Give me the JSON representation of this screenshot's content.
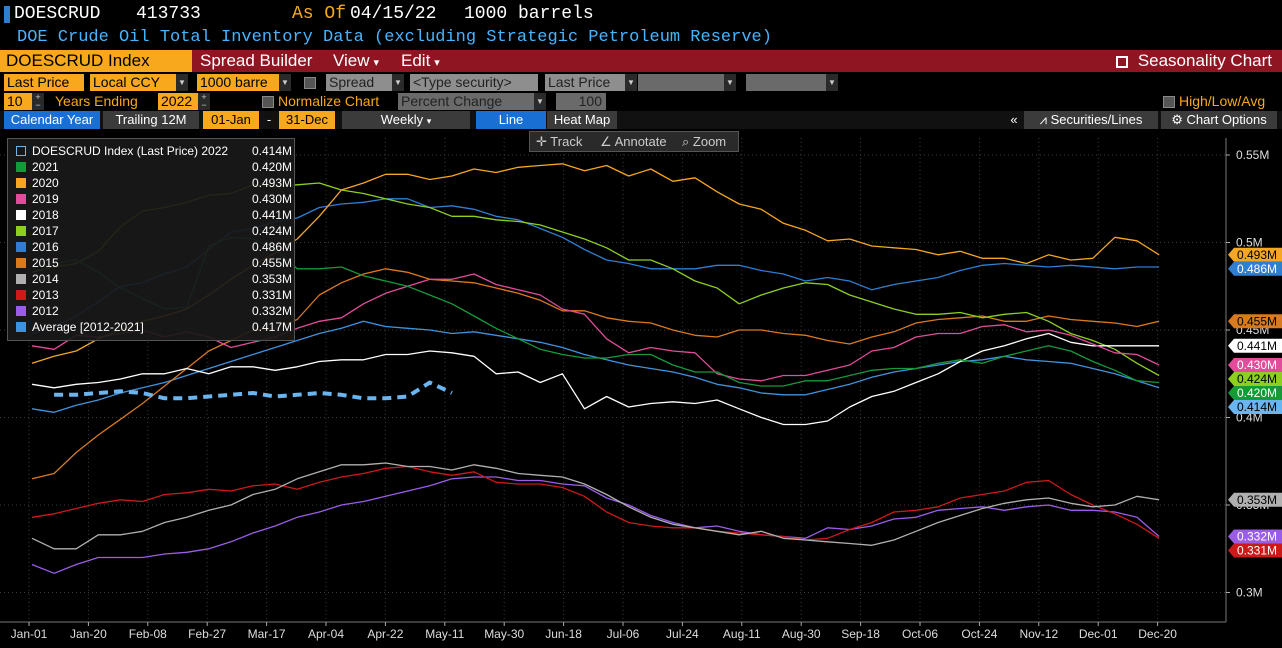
{
  "header": {
    "ticker": "DOESCRUD",
    "value": "413733",
    "asof_label": "As Of",
    "asof_date": "04/15/22",
    "units": "1000 barrels",
    "description": "DOE Crude Oil Total Inventory Data (excluding Strategic Petroleum Reserve)"
  },
  "tabs": {
    "index": "DOESCRUD Index",
    "spread_builder": "Spread Builder",
    "view": "View",
    "edit": "Edit",
    "seasonality": "Seasonality Chart"
  },
  "options": {
    "last_price": "Last Price",
    "local_ccy": "Local CCY",
    "units": "1000 barre",
    "spread": "Spread",
    "type_security": "<Type security>",
    "last_price2": "Last Price",
    "years_count": "10",
    "years_ending_label": "Years Ending",
    "years_ending": "2022",
    "normalize_label": "Normalize Chart",
    "percent_change": "Percent Change",
    "percent_base": "100",
    "high_low_avg": "High/Low/Avg"
  },
  "toolbar": {
    "calendar_year": "Calendar Year",
    "trailing": "Trailing 12M",
    "start": "01-Jan",
    "dash": "-",
    "end": "31-Dec",
    "weekly": "Weekly",
    "line": "Line",
    "heat_map": "Heat Map",
    "collapse": "«",
    "securities_lines": "Securities/Lines",
    "chart_options": "Chart Options"
  },
  "chart_controls": {
    "track": "Track",
    "annotate": "Annotate",
    "zoom": "Zoom"
  },
  "chart_data": {
    "type": "line",
    "title": "",
    "xlabel": "",
    "ylabel": "",
    "x_ticks": [
      "Jan-01",
      "Jan-20",
      "Feb-08",
      "Feb-27",
      "Mar-17",
      "Apr-04",
      "Apr-22",
      "May-11",
      "May-30",
      "Jun-18",
      "Jul-06",
      "Jul-24",
      "Aug-11",
      "Aug-30",
      "Sep-18",
      "Oct-06",
      "Oct-24",
      "Nov-12",
      "Dec-01",
      "Dec-20"
    ],
    "y_ticks": [
      "0.55M",
      "0.5M",
      "0.45M",
      "0.4M",
      "0.35M",
      "0.3M"
    ],
    "y_tick_values": [
      0.55,
      0.5,
      0.45,
      0.4,
      0.35,
      0.3
    ],
    "ylim": [
      0.275,
      0.575
    ],
    "xlim": [
      0,
      52
    ],
    "grid": true,
    "legend_position": "top-left",
    "series": [
      {
        "name": "DOESCRUD Index (Last Price) 2022",
        "legend_value": "0.414M",
        "axis_label": "0.414M",
        "color": "#6ab4f0",
        "dashed": true,
        "values": [
          0.413,
          0.413,
          0.414,
          0.415,
          0.414,
          0.411,
          0.411,
          0.412,
          0.413,
          0.414,
          0.412,
          0.413,
          0.414,
          0.413,
          0.411,
          0.411,
          0.412,
          0.42,
          0.414
        ]
      },
      {
        "name": "2021",
        "legend_value": "0.420M",
        "axis_label": "0.420M",
        "color": "#159a3a",
        "values": [
          0.486,
          0.488,
          0.49,
          0.483,
          0.474,
          0.468,
          0.462,
          0.463,
          0.498,
          0.503,
          0.502,
          0.496,
          0.485,
          0.485,
          0.486,
          0.481,
          0.478,
          0.475,
          0.47,
          0.465,
          0.458,
          0.451,
          0.445,
          0.439,
          0.436,
          0.434,
          0.434,
          0.436,
          0.436,
          0.43,
          0.426,
          0.426,
          0.42,
          0.418,
          0.418,
          0.421,
          0.421,
          0.424,
          0.427,
          0.428,
          0.428,
          0.431,
          0.433,
          0.431,
          0.435,
          0.438,
          0.441,
          0.438,
          0.432,
          0.427,
          0.421,
          0.42
        ]
      },
      {
        "name": "2020",
        "legend_value": "0.493M",
        "axis_label": "0.493M",
        "color": "#f5a623",
        "values": [
          0.431,
          0.435,
          0.438,
          0.445,
          0.45,
          0.455,
          0.458,
          0.462,
          0.47,
          0.479,
          0.487,
          0.494,
          0.502,
          0.515,
          0.53,
          0.534,
          0.539,
          0.539,
          0.536,
          0.538,
          0.542,
          0.54,
          0.543,
          0.544,
          0.545,
          0.541,
          0.544,
          0.538,
          0.542,
          0.535,
          0.537,
          0.529,
          0.522,
          0.519,
          0.511,
          0.507,
          0.501,
          0.502,
          0.498,
          0.497,
          0.496,
          0.493,
          0.495,
          0.491,
          0.491,
          0.488,
          0.493,
          0.49,
          0.491,
          0.503,
          0.501,
          0.493
        ]
      },
      {
        "name": "2019",
        "legend_value": "0.430M",
        "axis_label": "0.430M",
        "color": "#e04d9a",
        "values": [
          0.441,
          0.439,
          0.447,
          0.446,
          0.448,
          0.45,
          0.446,
          0.449,
          0.446,
          0.44,
          0.443,
          0.446,
          0.451,
          0.455,
          0.457,
          0.465,
          0.471,
          0.475,
          0.479,
          0.479,
          0.482,
          0.476,
          0.473,
          0.47,
          0.462,
          0.459,
          0.445,
          0.437,
          0.44,
          0.438,
          0.437,
          0.425,
          0.422,
          0.421,
          0.424,
          0.424,
          0.427,
          0.43,
          0.438,
          0.44,
          0.446,
          0.448,
          0.448,
          0.452,
          0.453,
          0.449,
          0.45,
          0.447,
          0.442,
          0.437,
          0.436,
          0.43
        ]
      },
      {
        "name": "2018",
        "legend_value": "0.441M",
        "axis_label": "0.441M",
        "color": "#ffffff",
        "values": [
          0.419,
          0.417,
          0.419,
          0.42,
          0.422,
          0.425,
          0.425,
          0.428,
          0.425,
          0.429,
          0.429,
          0.427,
          0.429,
          0.432,
          0.433,
          0.433,
          0.436,
          0.436,
          0.438,
          0.437,
          0.435,
          0.425,
          0.426,
          0.42,
          0.425,
          0.405,
          0.412,
          0.406,
          0.408,
          0.409,
          0.408,
          0.41,
          0.405,
          0.4,
          0.396,
          0.396,
          0.398,
          0.406,
          0.412,
          0.415,
          0.42,
          0.425,
          0.432,
          0.438,
          0.441,
          0.445,
          0.448,
          0.443,
          0.441,
          0.441,
          0.441,
          0.441
        ]
      },
      {
        "name": "2017",
        "legend_value": "0.424M",
        "axis_label": "0.424M",
        "color": "#8ccf21",
        "values": [
          0.483,
          0.486,
          0.488,
          0.495,
          0.509,
          0.518,
          0.52,
          0.523,
          0.527,
          0.528,
          0.533,
          0.532,
          0.533,
          0.534,
          0.53,
          0.528,
          0.525,
          0.522,
          0.52,
          0.515,
          0.515,
          0.513,
          0.512,
          0.51,
          0.506,
          0.502,
          0.497,
          0.49,
          0.49,
          0.485,
          0.478,
          0.474,
          0.465,
          0.47,
          0.474,
          0.477,
          0.476,
          0.47,
          0.466,
          0.462,
          0.459,
          0.459,
          0.46,
          0.457,
          0.459,
          0.46,
          0.455,
          0.448,
          0.444,
          0.439,
          0.431,
          0.424
        ]
      },
      {
        "name": "2016",
        "legend_value": "0.486M",
        "axis_label": "0.486M",
        "color": "#2f7ed1",
        "values": [
          0.448,
          0.452,
          0.458,
          0.466,
          0.475,
          0.477,
          0.482,
          0.486,
          0.496,
          0.506,
          0.508,
          0.512,
          0.514,
          0.52,
          0.522,
          0.523,
          0.525,
          0.525,
          0.52,
          0.521,
          0.519,
          0.515,
          0.513,
          0.508,
          0.503,
          0.496,
          0.49,
          0.488,
          0.485,
          0.485,
          0.485,
          0.487,
          0.487,
          0.484,
          0.482,
          0.478,
          0.48,
          0.478,
          0.473,
          0.476,
          0.478,
          0.48,
          0.484,
          0.487,
          0.488,
          0.487,
          0.486,
          0.487,
          0.486,
          0.485,
          0.486,
          0.486
        ]
      },
      {
        "name": "2015",
        "legend_value": "0.455M",
        "axis_label": "0.455M",
        "color": "#d97a1e",
        "values": [
          0.365,
          0.368,
          0.38,
          0.39,
          0.399,
          0.408,
          0.418,
          0.428,
          0.438,
          0.444,
          0.45,
          0.451,
          0.456,
          0.47,
          0.477,
          0.482,
          0.485,
          0.483,
          0.479,
          0.478,
          0.477,
          0.474,
          0.471,
          0.467,
          0.461,
          0.461,
          0.457,
          0.455,
          0.454,
          0.45,
          0.447,
          0.446,
          0.45,
          0.45,
          0.448,
          0.447,
          0.444,
          0.442,
          0.446,
          0.449,
          0.454,
          0.456,
          0.457,
          0.458,
          0.455,
          0.455,
          0.458,
          0.456,
          0.455,
          0.454,
          0.452,
          0.455
        ]
      },
      {
        "name": "2014",
        "legend_value": "0.353M",
        "axis_label": "0.353M",
        "color": "#b0b0b0",
        "values": [
          0.331,
          0.325,
          0.325,
          0.333,
          0.333,
          0.335,
          0.34,
          0.343,
          0.347,
          0.35,
          0.356,
          0.359,
          0.365,
          0.369,
          0.373,
          0.373,
          0.374,
          0.372,
          0.372,
          0.37,
          0.373,
          0.371,
          0.368,
          0.367,
          0.366,
          0.362,
          0.356,
          0.349,
          0.343,
          0.339,
          0.337,
          0.335,
          0.333,
          0.335,
          0.331,
          0.33,
          0.329,
          0.328,
          0.327,
          0.33,
          0.335,
          0.34,
          0.344,
          0.348,
          0.351,
          0.353,
          0.354,
          0.351,
          0.349,
          0.35,
          0.355,
          0.353
        ]
      },
      {
        "name": "2013",
        "legend_value": "0.331M",
        "axis_label": "0.331M",
        "color": "#cc1a1a",
        "values": [
          0.343,
          0.345,
          0.348,
          0.351,
          0.353,
          0.352,
          0.356,
          0.357,
          0.359,
          0.358,
          0.361,
          0.362,
          0.359,
          0.363,
          0.366,
          0.368,
          0.371,
          0.372,
          0.369,
          0.367,
          0.369,
          0.363,
          0.362,
          0.362,
          0.36,
          0.355,
          0.346,
          0.34,
          0.338,
          0.337,
          0.337,
          0.335,
          0.334,
          0.333,
          0.332,
          0.33,
          0.331,
          0.336,
          0.34,
          0.346,
          0.347,
          0.349,
          0.354,
          0.356,
          0.358,
          0.363,
          0.364,
          0.356,
          0.35,
          0.345,
          0.339,
          0.331
        ]
      },
      {
        "name": "2012",
        "legend_value": "0.332M",
        "axis_label": "0.332M",
        "color": "#9b5de5",
        "values": [
          0.316,
          0.311,
          0.316,
          0.32,
          0.32,
          0.32,
          0.322,
          0.323,
          0.325,
          0.329,
          0.334,
          0.338,
          0.343,
          0.346,
          0.35,
          0.352,
          0.355,
          0.358,
          0.361,
          0.365,
          0.366,
          0.366,
          0.364,
          0.364,
          0.362,
          0.361,
          0.354,
          0.35,
          0.344,
          0.34,
          0.337,
          0.338,
          0.335,
          0.333,
          0.332,
          0.331,
          0.337,
          0.336,
          0.338,
          0.342,
          0.343,
          0.347,
          0.348,
          0.349,
          0.347,
          0.349,
          0.35,
          0.347,
          0.347,
          0.346,
          0.343,
          0.332
        ]
      },
      {
        "name": "Average  [2012-2021]",
        "legend_value": "0.417M",
        "axis_label": "",
        "color": "#3f93dc",
        "values": [
          0.405,
          0.403,
          0.407,
          0.41,
          0.414,
          0.417,
          0.42,
          0.424,
          0.428,
          0.432,
          0.436,
          0.44,
          0.444,
          0.448,
          0.451,
          0.455,
          0.452,
          0.451,
          0.45,
          0.448,
          0.449,
          0.447,
          0.445,
          0.443,
          0.44,
          0.436,
          0.433,
          0.43,
          0.428,
          0.426,
          0.423,
          0.419,
          0.417,
          0.414,
          0.413,
          0.413,
          0.416,
          0.419,
          0.423,
          0.426,
          0.428,
          0.43,
          0.432,
          0.433,
          0.435,
          0.433,
          0.432,
          0.431,
          0.428,
          0.425,
          0.421,
          0.417
        ]
      }
    ]
  }
}
